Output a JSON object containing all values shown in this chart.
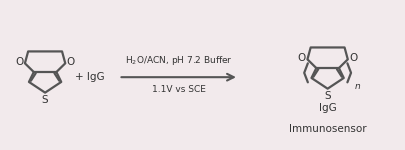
{
  "bg_color": "#f2eaec",
  "line_color": "#555555",
  "text_color": "#333333",
  "arrow_text_top": "H$_2$O/ACN, pH 7.2 Buffer",
  "arrow_text_bottom": "1.1V vs SCE",
  "label_text": "Immunosensor",
  "lw": 1.6,
  "fontsize_main": 7.5,
  "fontsize_small": 6.5,
  "fontsize_label": 7.5
}
